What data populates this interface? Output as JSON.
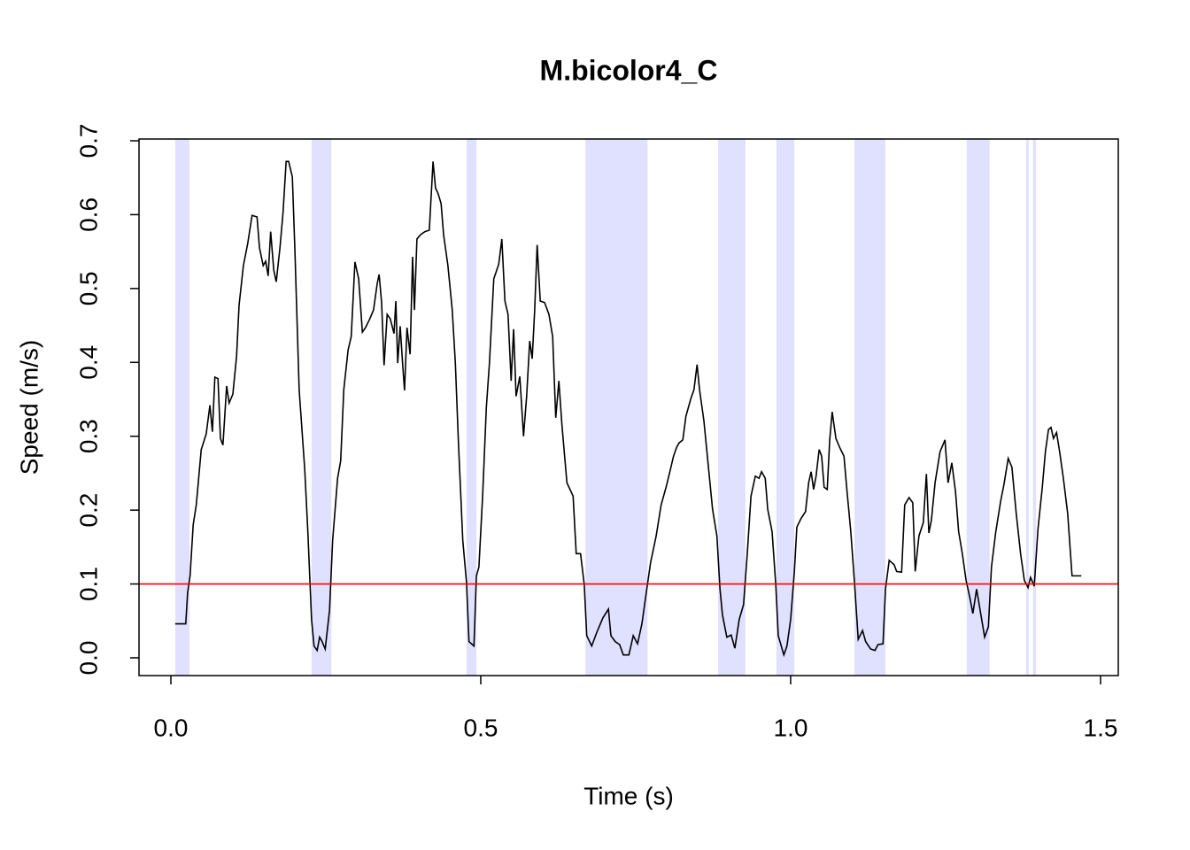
{
  "chart_data": {
    "type": "line",
    "title": "M.bicolor4_C",
    "xlabel": "Time (s)",
    "ylabel": "Speed (m/s)",
    "color": "#000000",
    "x": [
      0.007,
      0.024,
      0.027,
      0.031,
      0.036,
      0.041,
      0.049,
      0.057,
      0.063,
      0.067,
      0.071,
      0.076,
      0.08,
      0.084,
      0.09,
      0.094,
      0.1,
      0.106,
      0.11,
      0.117,
      0.124,
      0.131,
      0.139,
      0.143,
      0.149,
      0.153,
      0.157,
      0.161,
      0.166,
      0.17,
      0.176,
      0.181,
      0.186,
      0.19,
      0.196,
      0.2,
      0.207,
      0.216,
      0.221,
      0.227,
      0.231,
      0.236,
      0.24,
      0.244,
      0.249,
      0.256,
      0.261,
      0.269,
      0.274,
      0.279,
      0.286,
      0.291,
      0.297,
      0.303,
      0.309,
      0.314,
      0.321,
      0.327,
      0.333,
      0.336,
      0.34,
      0.344,
      0.349,
      0.354,
      0.36,
      0.363,
      0.366,
      0.37,
      0.374,
      0.377,
      0.381,
      0.386,
      0.39,
      0.393,
      0.397,
      0.403,
      0.41,
      0.417,
      0.423,
      0.427,
      0.431,
      0.436,
      0.44,
      0.447,
      0.454,
      0.459,
      0.464,
      0.471,
      0.477,
      0.481,
      0.489,
      0.493,
      0.497,
      0.503,
      0.509,
      0.514,
      0.521,
      0.529,
      0.534,
      0.539,
      0.544,
      0.549,
      0.553,
      0.557,
      0.563,
      0.569,
      0.574,
      0.579,
      0.583,
      0.587,
      0.591,
      0.596,
      0.603,
      0.61,
      0.616,
      0.621,
      0.626,
      0.631,
      0.639,
      0.649,
      0.654,
      0.661,
      0.667,
      0.671,
      0.679,
      0.687,
      0.697,
      0.706,
      0.71,
      0.717,
      0.724,
      0.73,
      0.739,
      0.746,
      0.753,
      0.76,
      0.767,
      0.774,
      0.783,
      0.791,
      0.799,
      0.806,
      0.811,
      0.816,
      0.82,
      0.826,
      0.831,
      0.839,
      0.844,
      0.849,
      0.853,
      0.86,
      0.867,
      0.874,
      0.881,
      0.886,
      0.89,
      0.897,
      0.904,
      0.91,
      0.917,
      0.924,
      0.93,
      0.936,
      0.943,
      0.949,
      0.953,
      0.959,
      0.963,
      0.97,
      0.976,
      0.98,
      0.989,
      0.994,
      1.0,
      1.006,
      1.01,
      1.017,
      1.024,
      1.029,
      1.033,
      1.037,
      1.041,
      1.046,
      1.05,
      1.054,
      1.059,
      1.063,
      1.067,
      1.073,
      1.079,
      1.086,
      1.091,
      1.097,
      1.103,
      1.109,
      1.116,
      1.121,
      1.129,
      1.136,
      1.141,
      1.149,
      1.153,
      1.159,
      1.167,
      1.171,
      1.179,
      1.184,
      1.191,
      1.197,
      1.201,
      1.207,
      1.214,
      1.219,
      1.223,
      1.227,
      1.233,
      1.241,
      1.249,
      1.254,
      1.26,
      1.266,
      1.271,
      1.277,
      1.283,
      1.289,
      1.294,
      1.3,
      1.307,
      1.313,
      1.319,
      1.324,
      1.331,
      1.339,
      1.344,
      1.351,
      1.357,
      1.364,
      1.371,
      1.377,
      1.383,
      1.387,
      1.393,
      1.399,
      1.406,
      1.411,
      1.416,
      1.42,
      1.424,
      1.429,
      1.434,
      1.44,
      1.447,
      1.454,
      1.469
    ],
    "values": [
      0.046,
      0.046,
      0.088,
      0.111,
      0.18,
      0.207,
      0.282,
      0.303,
      0.342,
      0.306,
      0.38,
      0.378,
      0.297,
      0.288,
      0.368,
      0.345,
      0.357,
      0.408,
      0.477,
      0.531,
      0.561,
      0.599,
      0.597,
      0.555,
      0.531,
      0.537,
      0.517,
      0.577,
      0.525,
      0.509,
      0.555,
      0.603,
      0.672,
      0.672,
      0.651,
      0.555,
      0.363,
      0.255,
      0.171,
      0.052,
      0.016,
      0.01,
      0.028,
      0.022,
      0.012,
      0.064,
      0.159,
      0.243,
      0.267,
      0.363,
      0.417,
      0.435,
      0.536,
      0.513,
      0.441,
      0.447,
      0.459,
      0.471,
      0.507,
      0.519,
      0.481,
      0.396,
      0.465,
      0.459,
      0.439,
      0.483,
      0.399,
      0.449,
      0.397,
      0.362,
      0.447,
      0.411,
      0.543,
      0.471,
      0.567,
      0.573,
      0.577,
      0.579,
      0.672,
      0.636,
      0.629,
      0.615,
      0.573,
      0.531,
      0.471,
      0.399,
      0.291,
      0.159,
      0.102,
      0.022,
      0.016,
      0.111,
      0.123,
      0.219,
      0.339,
      0.399,
      0.513,
      0.533,
      0.567,
      0.483,
      0.465,
      0.375,
      0.445,
      0.354,
      0.381,
      0.3,
      0.354,
      0.429,
      0.405,
      0.471,
      0.559,
      0.483,
      0.481,
      0.465,
      0.435,
      0.325,
      0.375,
      0.315,
      0.237,
      0.219,
      0.141,
      0.141,
      0.099,
      0.03,
      0.016,
      0.034,
      0.054,
      0.066,
      0.03,
      0.022,
      0.018,
      0.004,
      0.004,
      0.03,
      0.019,
      0.046,
      0.088,
      0.129,
      0.165,
      0.207,
      0.231,
      0.255,
      0.273,
      0.285,
      0.291,
      0.295,
      0.327,
      0.351,
      0.363,
      0.397,
      0.363,
      0.321,
      0.261,
      0.201,
      0.165,
      0.093,
      0.058,
      0.028,
      0.031,
      0.013,
      0.052,
      0.072,
      0.141,
      0.219,
      0.246,
      0.243,
      0.252,
      0.243,
      0.201,
      0.171,
      0.099,
      0.03,
      0.004,
      0.016,
      0.052,
      0.117,
      0.177,
      0.189,
      0.198,
      0.237,
      0.252,
      0.228,
      0.246,
      0.282,
      0.273,
      0.231,
      0.228,
      0.295,
      0.333,
      0.297,
      0.285,
      0.273,
      0.225,
      0.171,
      0.102,
      0.025,
      0.037,
      0.022,
      0.012,
      0.01,
      0.018,
      0.019,
      0.093,
      0.132,
      0.126,
      0.117,
      0.116,
      0.207,
      0.217,
      0.21,
      0.117,
      0.165,
      0.183,
      0.249,
      0.169,
      0.186,
      0.237,
      0.279,
      0.295,
      0.237,
      0.264,
      0.225,
      0.171,
      0.141,
      0.105,
      0.082,
      0.06,
      0.093,
      0.058,
      0.028,
      0.042,
      0.123,
      0.171,
      0.213,
      0.234,
      0.27,
      0.258,
      0.195,
      0.141,
      0.105,
      0.095,
      0.109,
      0.097,
      0.174,
      0.231,
      0.279,
      0.309,
      0.312,
      0.297,
      0.305,
      0.279,
      0.243,
      0.195,
      0.111,
      0.111
    ],
    "shaded_spans": [
      [
        0.007,
        0.03
      ],
      [
        0.227,
        0.259
      ],
      [
        0.477,
        0.493
      ],
      [
        0.669,
        0.769
      ],
      [
        0.883,
        0.927
      ],
      [
        0.977,
        1.006
      ],
      [
        1.103,
        1.153
      ],
      [
        1.284,
        1.321
      ],
      [
        1.38,
        1.384
      ],
      [
        1.391,
        1.396
      ]
    ],
    "shade_color": "#e0e0ff",
    "hline": 0.1,
    "hline_color": "#ff0000",
    "xlim": [
      -0.0514,
      1.5286
    ],
    "ylim": [
      -0.024,
      0.7024
    ],
    "xticks": [
      {
        "value": 0,
        "label": "0.0"
      },
      0.5,
      {
        "value": 1,
        "label": "1.0"
      },
      1.5
    ],
    "yticks": [
      {
        "value": 0,
        "label": "0.0"
      },
      0.1,
      0.2,
      0.3,
      0.4,
      0.5,
      0.6,
      0.7
    ]
  }
}
